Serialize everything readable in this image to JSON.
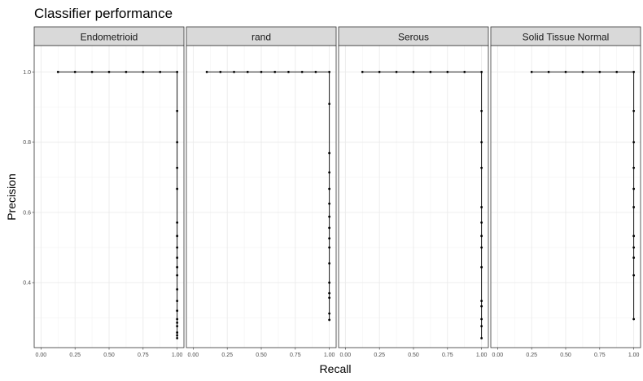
{
  "chart_data": {
    "type": "line",
    "title": "Classifier performance",
    "xlabel": "Recall",
    "ylabel": "Precision",
    "xlim": [
      -0.05,
      1.05
    ],
    "ylim": [
      0.215,
      1.075
    ],
    "xticks": [
      0.0,
      0.25,
      0.5,
      0.75,
      1.0
    ],
    "xtick_labels": [
      "0.00",
      "0.25",
      "0.50",
      "0.75",
      "1.00"
    ],
    "yticks": [
      0.4,
      0.6,
      0.8,
      1.0
    ],
    "ytick_labels": [
      "0.4",
      "0.6",
      "0.8",
      "1.0"
    ],
    "grid": true,
    "legend": "none",
    "markers": true,
    "line_color": "#000000",
    "panels": [
      {
        "name": "Endometrioid",
        "x": [
          0.125,
          0.25,
          0.375,
          0.5,
          0.625,
          0.75,
          0.875,
          1.0,
          1.0,
          1.0,
          1.0,
          1.0,
          1.0,
          1.0,
          1.0,
          1.0,
          1.0,
          1.0,
          1.0,
          1.0,
          1.0,
          1.0,
          1.0,
          1.0,
          1.0,
          1.0,
          1.0
        ],
        "y": [
          1.0,
          1.0,
          1.0,
          1.0,
          1.0,
          1.0,
          1.0,
          1.0,
          0.889,
          0.8,
          0.727,
          0.667,
          0.571,
          0.533,
          0.5,
          0.471,
          0.444,
          0.421,
          0.381,
          0.348,
          0.32,
          0.296,
          0.286,
          0.276,
          0.258,
          0.25,
          0.242
        ]
      },
      {
        "name": "rand",
        "x": [
          0.1,
          0.2,
          0.3,
          0.4,
          0.5,
          0.6,
          0.7,
          0.8,
          0.9,
          1.0,
          1.0,
          1.0,
          1.0,
          1.0,
          1.0,
          1.0,
          1.0,
          1.0,
          1.0,
          1.0,
          1.0,
          1.0,
          1.0,
          1.0,
          1.0
        ],
        "y": [
          1.0,
          1.0,
          1.0,
          1.0,
          1.0,
          1.0,
          1.0,
          1.0,
          1.0,
          1.0,
          0.909,
          0.769,
          0.714,
          0.667,
          0.625,
          0.588,
          0.556,
          0.526,
          0.5,
          0.455,
          0.4,
          0.37,
          0.357,
          0.312,
          0.294
        ]
      },
      {
        "name": "Serous",
        "x": [
          0.125,
          0.25,
          0.375,
          0.5,
          0.625,
          0.75,
          0.875,
          1.0,
          1.0,
          1.0,
          1.0,
          1.0,
          1.0,
          1.0,
          1.0,
          1.0,
          1.0,
          1.0,
          1.0,
          1.0,
          1.0
        ],
        "y": [
          1.0,
          1.0,
          1.0,
          1.0,
          1.0,
          1.0,
          1.0,
          1.0,
          0.889,
          0.8,
          0.727,
          0.615,
          0.571,
          0.533,
          0.5,
          0.444,
          0.348,
          0.333,
          0.296,
          0.276,
          0.242
        ]
      },
      {
        "name": "Solid Tissue Normal",
        "x": [
          0.25,
          0.375,
          0.5,
          0.625,
          0.75,
          0.875,
          1.0,
          1.0,
          1.0,
          1.0,
          1.0,
          1.0,
          1.0,
          1.0,
          1.0,
          1.0,
          1.0
        ],
        "y": [
          1.0,
          1.0,
          1.0,
          1.0,
          1.0,
          1.0,
          1.0,
          0.889,
          0.8,
          0.727,
          0.667,
          0.615,
          0.533,
          0.5,
          0.471,
          0.421,
          0.296
        ]
      }
    ]
  }
}
